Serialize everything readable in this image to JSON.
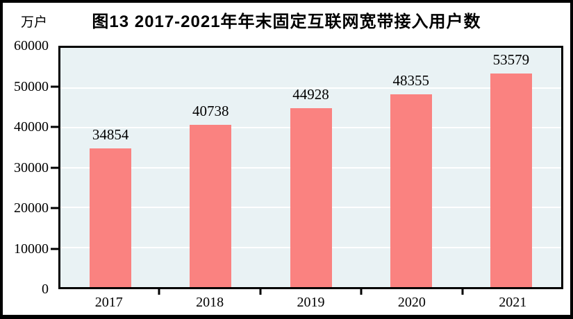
{
  "page": {
    "title": "图13  2017-2021年年末固定互联网宽带接入用户数",
    "unit_label": "万户"
  },
  "chart_data": {
    "type": "bar",
    "title": "图13  2017-2021年年末固定互联网宽带接入用户数",
    "xlabel": "",
    "ylabel": "万户",
    "categories": [
      "2017",
      "2018",
      "2019",
      "2020",
      "2021"
    ],
    "values": [
      34854,
      40738,
      44928,
      48355,
      53579
    ],
    "data_labels": [
      "34854",
      "40738",
      "44928",
      "48355",
      "53579"
    ],
    "ylim": [
      0,
      60000
    ],
    "yticks": [
      0,
      10000,
      20000,
      30000,
      40000,
      50000,
      60000
    ],
    "ytick_labels": [
      "0",
      "10000",
      "20000",
      "30000",
      "40000",
      "50000",
      "60000"
    ],
    "grid": "horizontal",
    "legend": "none",
    "colors": {
      "bar": "#FA8280",
      "plot_background": "#E9F2F4",
      "gridline": "#FFFFFF",
      "axis": "#000000",
      "text": "#000000",
      "frame_border": "#000000",
      "page_background": "#FFFFFF"
    }
  }
}
